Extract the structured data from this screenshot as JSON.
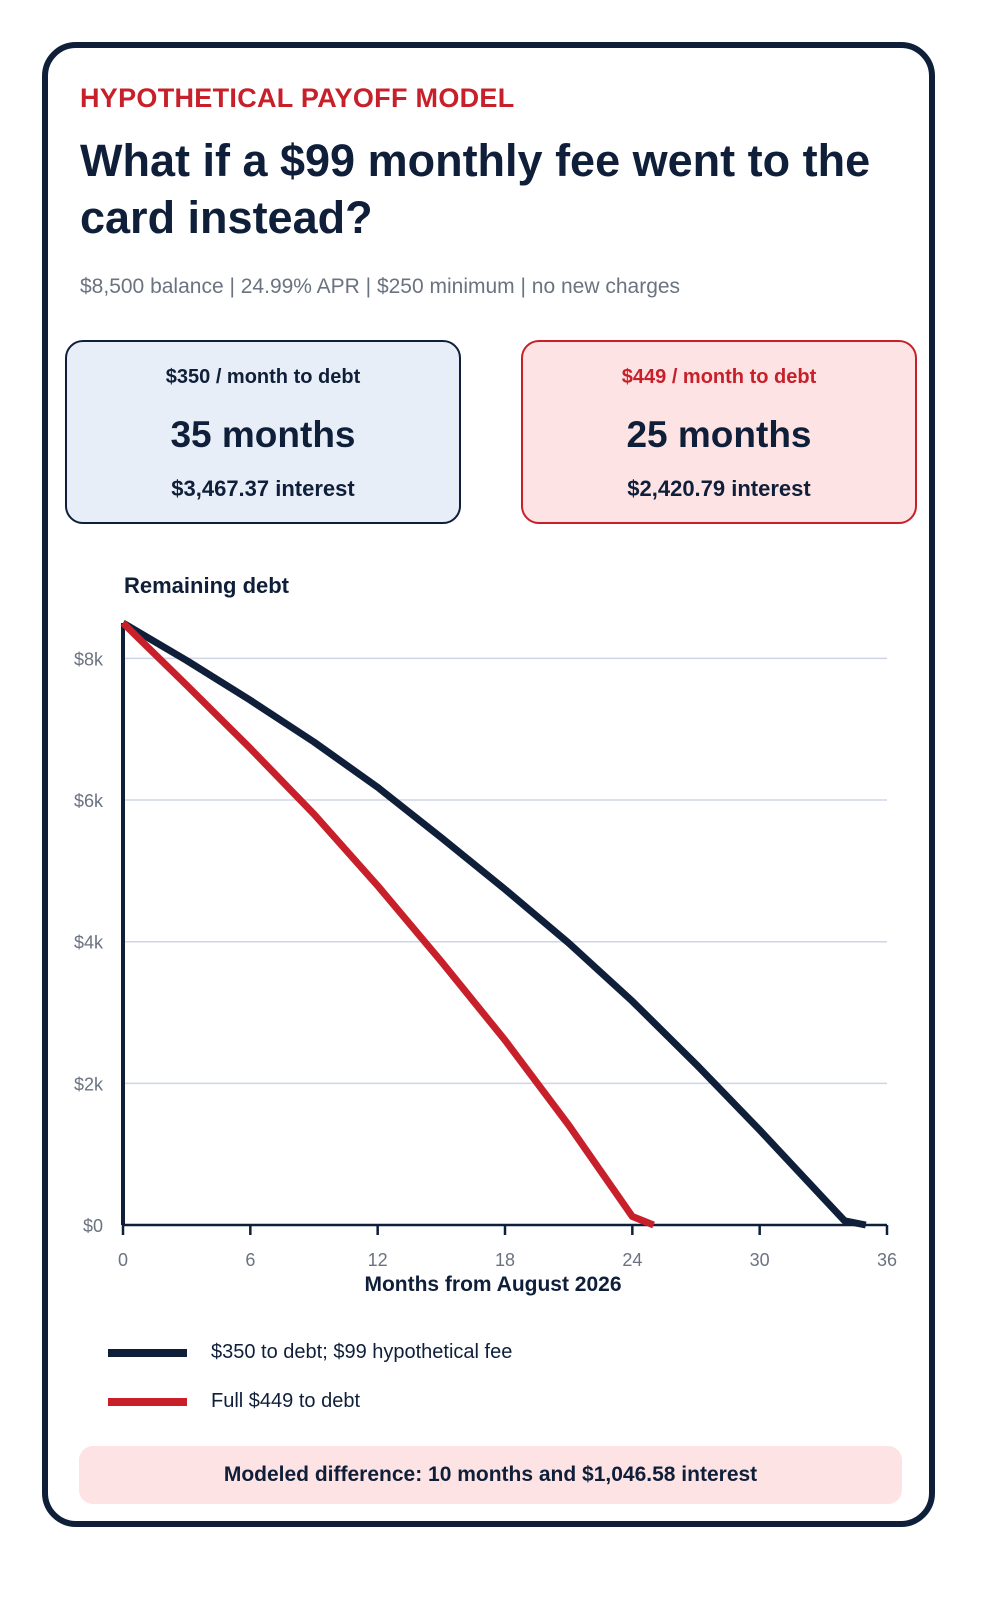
{
  "header": {
    "eyebrow": "HYPOTHETICAL PAYOFF MODEL",
    "title": "What if a $99 monthly fee went to the card instead?",
    "subtitle": "$8,500 balance | 24.99% APR | $250 minimum | no new charges"
  },
  "scenarios": [
    {
      "label": "$350 / month to debt",
      "months": "35 months",
      "interest": "$3,467.37 interest"
    },
    {
      "label": "$449 / month to debt",
      "months": "25 months",
      "interest": "$2,420.79 interest"
    }
  ],
  "colors": {
    "navy": "#0f1f3a",
    "red": "#c8202a",
    "navy_bg": "#e8eef7",
    "red_bg": "#fde3e3",
    "grid": "#cfd5e6",
    "muted": "#6b7280"
  },
  "chart_data": {
    "type": "line",
    "title": "Remaining debt",
    "xlabel": "Months from August 2026",
    "ylabel": "",
    "xlim": [
      0,
      36
    ],
    "ylim": [
      0,
      8500
    ],
    "x_ticks": [
      0,
      6,
      12,
      18,
      24,
      30,
      36
    ],
    "y_ticks": [
      0,
      2000,
      4000,
      6000,
      8000
    ],
    "y_tick_labels": [
      "$0",
      "$2k",
      "$4k",
      "$6k",
      "$8k"
    ],
    "grid": "horizontal",
    "series": [
      {
        "name": "$350 to debt; $99 hypothetical fee",
        "color": "#0f1f3a",
        "x": [
          0,
          3,
          6,
          9,
          12,
          15,
          18,
          21,
          24,
          27,
          30,
          33,
          34,
          35
        ],
        "y": [
          8500,
          7970,
          7410,
          6820,
          6180,
          5470,
          4740,
          3980,
          3160,
          2270,
          1340,
          380,
          60,
          0
        ]
      },
      {
        "name": "Full $449 to debt",
        "color": "#c8202a",
        "x": [
          0,
          3,
          6,
          9,
          12,
          15,
          18,
          21,
          24,
          25
        ],
        "y": [
          8500,
          7620,
          6730,
          5800,
          4790,
          3720,
          2610,
          1410,
          120,
          0
        ]
      }
    ]
  },
  "footer": {
    "text": "Modeled difference: 10 months and $1,046.58 interest"
  }
}
